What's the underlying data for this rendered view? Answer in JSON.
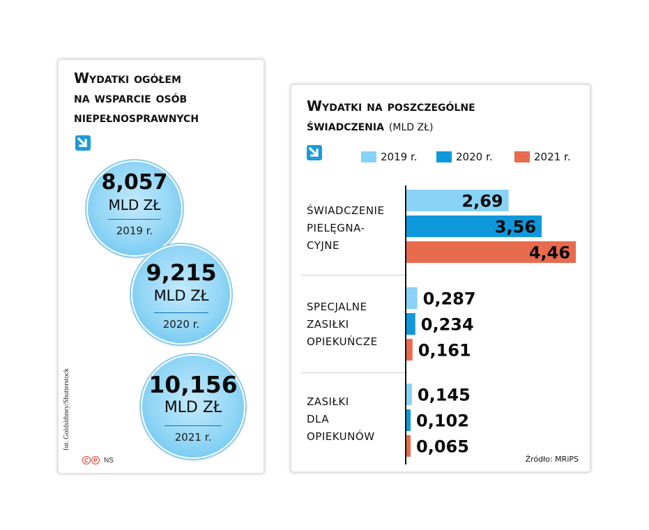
{
  "colors": {
    "y2019": "#88d2f5",
    "y2020": "#0f98dc",
    "y2021": "#e96b4d",
    "circle_border": "#8cccec",
    "arrow": "#1e9ad8"
  },
  "left": {
    "title_lines": [
      "Wydatki ogółem",
      "na wsparcie osób",
      "niepełnosprawnych"
    ],
    "arrow_icon": "arrow-down-right-icon",
    "circles": [
      {
        "value": "8,057",
        "unit": "MLD ZŁ",
        "year": "2019 r."
      },
      {
        "value": "9,215",
        "unit": "MLD ZŁ",
        "year": "2020 r."
      },
      {
        "value": "10,156",
        "unit": "MLD ZŁ",
        "year": "2021 r."
      }
    ],
    "photo_credit": "fot. Goldsithney/Shutterstock",
    "logo_letters": [
      "C",
      "P"
    ],
    "logo_text": "NS"
  },
  "right": {
    "title_lines": [
      "Wydatki na poszczególne",
      "świadczenia"
    ],
    "title_unit": "(MLD ZŁ)",
    "arrow_icon": "arrow-down-right-icon",
    "source": "Źródło: MRiPS"
  },
  "chart_data": {
    "type": "bar",
    "orientation": "horizontal",
    "title": "Wydatki na poszczególne świadczenia (MLD ZŁ)",
    "categories": [
      [
        "ŚWIADCZENIE",
        "PIELĘGNA-",
        "CYJNE"
      ],
      [
        "SPECJALNE",
        "ZASIŁKI",
        "OPIEKUŃCZE"
      ],
      [
        "ZASIŁKI",
        "DLA",
        "OPIEKUNÓW"
      ]
    ],
    "series": [
      {
        "name": "2019 r.",
        "values": [
          2.69,
          0.287,
          0.145
        ],
        "labels": [
          "2,69",
          "0,287",
          "0,145"
        ]
      },
      {
        "name": "2020 r.",
        "values": [
          3.56,
          0.234,
          0.102
        ],
        "labels": [
          "3,56",
          "0,234",
          "0,102"
        ]
      },
      {
        "name": "2021 r.",
        "values": [
          4.46,
          0.161,
          0.065
        ],
        "labels": [
          "4,46",
          "0,161",
          "0,065"
        ]
      }
    ],
    "legend_position": "top",
    "grid": false
  },
  "totals_chart": {
    "type": "bubble",
    "title": "Wydatki ogółem na wsparcie osób niepełnosprawnych",
    "unit": "MLD ZŁ",
    "x": [
      "2019 r.",
      "2020 r.",
      "2021 r."
    ],
    "values": [
      8.057,
      9.215,
      10.156
    ]
  }
}
